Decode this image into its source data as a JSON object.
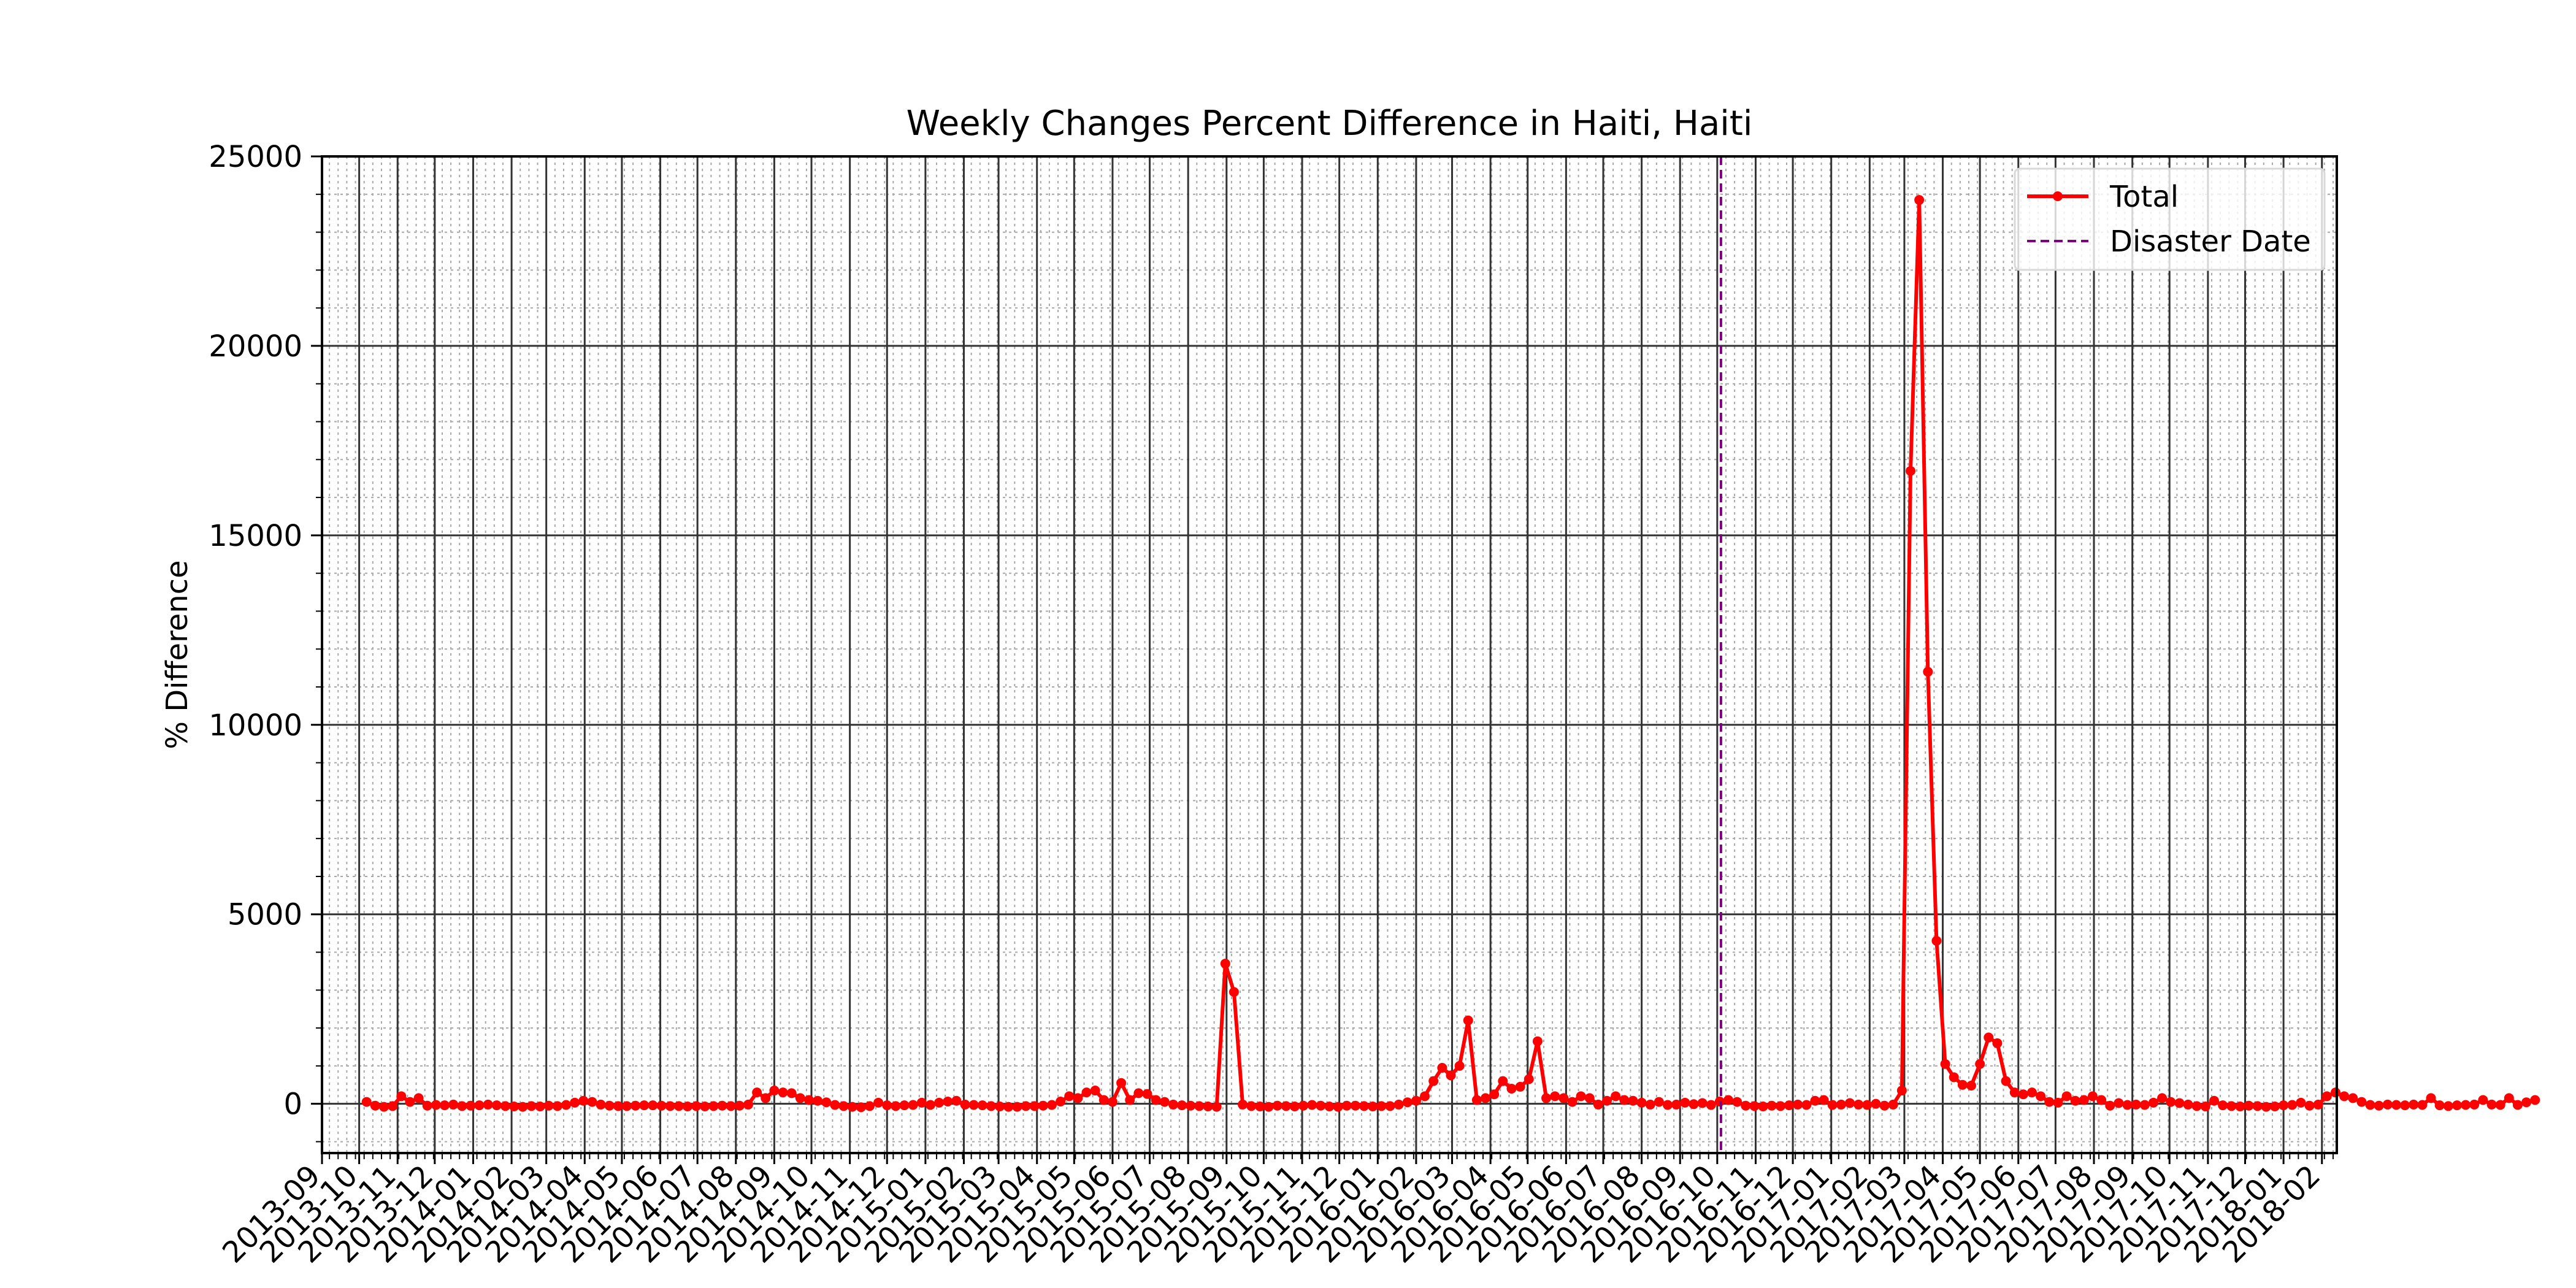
{
  "chart_data": {
    "type": "line",
    "title": "Weekly Changes Percent Difference in Haiti, Haiti",
    "xlabel": "",
    "ylabel": "% Difference",
    "x_start": "2013-09-01",
    "x_end": "2018-02-13",
    "ylim": [
      -1300,
      25000
    ],
    "yticks": [
      0,
      5000,
      10000,
      15000,
      20000,
      25000
    ],
    "xtick_labels": [
      "2013-09",
      "2013-10",
      "2013-11",
      "2013-12",
      "2014-01",
      "2014-02",
      "2014-03",
      "2014-04",
      "2014-05",
      "2014-06",
      "2014-07",
      "2014-08",
      "2014-09",
      "2014-10",
      "2014-11",
      "2014-12",
      "2015-01",
      "2015-02",
      "2015-03",
      "2015-04",
      "2015-05",
      "2015-06",
      "2015-07",
      "2015-08",
      "2015-09",
      "2015-10",
      "2015-11",
      "2015-12",
      "2016-01",
      "2016-02",
      "2016-03",
      "2016-04",
      "2016-05",
      "2016-06",
      "2016-07",
      "2016-08",
      "2016-09",
      "2016-10",
      "2016-11",
      "2016-12",
      "2017-01",
      "2017-02",
      "2017-03",
      "2017-04",
      "2017-05",
      "2017-06",
      "2017-07",
      "2017-08",
      "2017-09",
      "2017-10",
      "2017-11",
      "2017-12",
      "2018-01",
      "2018-02"
    ],
    "grid": true,
    "legend_position": "top-right",
    "series": [
      {
        "name": "Total",
        "color": "#ff0000",
        "x_start": "2013-10-07",
        "step_days": 7,
        "values": [
          50,
          -50,
          -80,
          -60,
          200,
          50,
          150,
          -50,
          -30,
          -40,
          -20,
          -60,
          -50,
          -40,
          -20,
          -40,
          -60,
          -70,
          -80,
          -60,
          -70,
          -50,
          -60,
          -30,
          30,
          80,
          50,
          -20,
          -50,
          -60,
          -60,
          -50,
          -40,
          -40,
          -50,
          -60,
          -60,
          -70,
          -60,
          -70,
          -60,
          -50,
          -60,
          -50,
          -20,
          300,
          150,
          350,
          300,
          280,
          150,
          100,
          80,
          40,
          -30,
          -60,
          -80,
          -90,
          -60,
          30,
          -40,
          -60,
          -40,
          -30,
          30,
          -30,
          30,
          60,
          80,
          -20,
          -30,
          -40,
          -60,
          -70,
          -80,
          -80,
          -60,
          -60,
          -50,
          -30,
          60,
          200,
          150,
          300,
          350,
          100,
          50,
          550,
          100,
          280,
          260,
          100,
          50,
          -20,
          -40,
          -50,
          -60,
          -70,
          -80,
          3700,
          2950,
          -20,
          -60,
          -70,
          -80,
          -50,
          -60,
          -70,
          -50,
          -30,
          -50,
          -70,
          -80,
          -50,
          -50,
          -60,
          -70,
          -60,
          -60,
          -20,
          40,
          80,
          200,
          600,
          950,
          750,
          1000,
          2200,
          100,
          150,
          250,
          600,
          400,
          450,
          650,
          1650,
          150,
          200,
          150,
          50,
          200,
          150,
          -20,
          80,
          200,
          100,
          80,
          30,
          -20,
          50,
          -30,
          -20,
          30,
          -10,
          20,
          -30,
          60,
          100,
          50,
          -50,
          -60,
          -70,
          -50,
          -60,
          -40,
          -20,
          -30,
          80,
          100,
          -30,
          -20,
          20,
          -20,
          -30,
          0,
          -50,
          -20,
          350,
          16700,
          23850,
          11400,
          4300,
          1050,
          700,
          500,
          480,
          1050,
          1750,
          1600,
          600,
          300,
          250,
          300,
          200,
          50,
          30,
          200,
          80,
          100,
          200,
          100,
          -50,
          20,
          -30,
          -20,
          -30,
          30,
          150,
          50,
          20,
          -20,
          -60,
          -70,
          80,
          -40,
          -60,
          -70,
          -50,
          -60,
          -80,
          -70,
          -40,
          -30,
          30,
          -50,
          -20,
          200,
          300,
          200,
          150,
          50,
          -30,
          -50,
          -20,
          -30,
          -40,
          -20,
          -30,
          150,
          -40,
          -60,
          -40,
          -30,
          -20,
          100,
          -20,
          -30,
          150,
          -30,
          40,
          100
        ]
      }
    ],
    "annotations": [
      {
        "label": "Disaster Date",
        "type": "vline",
        "x": "2016-10-04",
        "color": "#800080",
        "style": "dashed"
      }
    ]
  }
}
